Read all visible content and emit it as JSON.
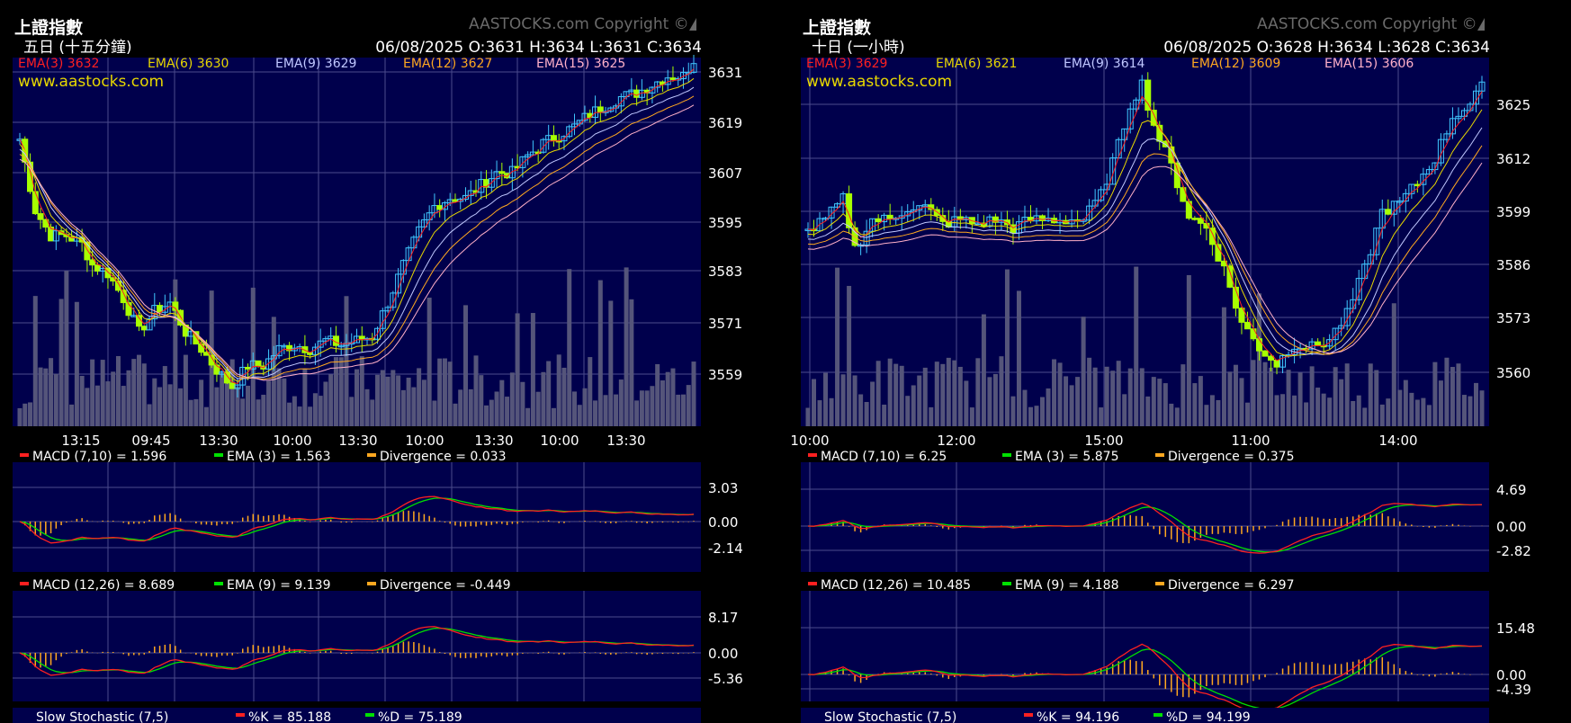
{
  "copyright": "AASTOCKS.com Copyright ©",
  "website": "www.aastocks.com",
  "colors": {
    "background": "#000000",
    "plot_bg": "#00004c",
    "grid": "#4b4b8c",
    "up_candle": "#40c8ff",
    "down_candle": "#a8ff00",
    "volume": "#55557a",
    "macd_line": "#ff2020",
    "signal_line": "#00e000",
    "divergence": "#ffa820",
    "ema3": "#ff2020",
    "ema6": "#e8d800",
    "ema9": "#c0c8ff",
    "ema12": "#ffa820",
    "ema15": "#ffb0c8"
  },
  "panels": [
    {
      "title": "上證指數",
      "period": "五日 (十五分鐘)",
      "ohlc": "06/08/2025   O:3631  H:3634  L:3631  C:3634",
      "ema_legend": [
        {
          "text": "EMA(3) 3632",
          "color": "#ff2020"
        },
        {
          "text": "EMA(6) 3630",
          "color": "#e8d800"
        },
        {
          "text": "EMA(9) 3629",
          "color": "#c0c8ff"
        },
        {
          "text": "EMA(12) 3627",
          "color": "#ffa820"
        },
        {
          "text": "EMA(15) 3625",
          "color": "#ffb0c8"
        }
      ],
      "macd1_legend": [
        "MACD (7,10) = 1.596",
        "EMA (3) = 1.563",
        "Divergence = 0.033"
      ],
      "macd2_legend": [
        "MACD (12,26) = 8.689",
        "EMA (9) = 9.139",
        "Divergence = -0.449"
      ],
      "stoch_legend": [
        "Slow Stochastic (7,5)",
        "%K = 85.188",
        "%D = 75.189"
      ]
    },
    {
      "title": "上證指數",
      "period": "十日 (一小時)",
      "ohlc": "06/08/2025   O:3628  H:3634  L:3628  C:3634",
      "ema_legend": [
        {
          "text": "EMA(3) 3629",
          "color": "#ff2020"
        },
        {
          "text": "EMA(6) 3621",
          "color": "#e8d800"
        },
        {
          "text": "EMA(9) 3614",
          "color": "#c0c8ff"
        },
        {
          "text": "EMA(12) 3609",
          "color": "#ffa820"
        },
        {
          "text": "EMA(15) 3606",
          "color": "#ffb0c8"
        }
      ],
      "macd1_legend": [
        "MACD (7,10) = 6.25",
        "EMA (3) = 5.875",
        "Divergence = 0.375"
      ],
      "macd2_legend": [
        "MACD (12,26) = 10.485",
        "EMA (9) = 4.188",
        "Divergence = 6.297"
      ],
      "stoch_legend": [
        "Slow Stochastic (7,5)",
        "%K = 94.196",
        "%D = 94.199"
      ]
    }
  ],
  "chart_data": [
    {
      "type": "candlestick",
      "title": "上證指數",
      "subtitle": "五日 (十五分鐘)",
      "x_tick_labels": [
        "13:15",
        "09:45",
        "13:30",
        "10:00",
        "13:30",
        "10:00",
        "13:30",
        "10:00",
        "13:30"
      ],
      "y_ticks": [
        3631,
        3619,
        3607,
        3595,
        3583,
        3571,
        3559
      ],
      "close_path": [
        [
          0,
          3615
        ],
        [
          3,
          3598
        ],
        [
          6,
          3592
        ],
        [
          9,
          3592
        ],
        [
          12,
          3590
        ],
        [
          14,
          3585
        ],
        [
          17,
          3583
        ],
        [
          20,
          3577
        ],
        [
          23,
          3569
        ],
        [
          26,
          3574
        ],
        [
          29,
          3576
        ],
        [
          32,
          3569
        ],
        [
          35,
          3565
        ],
        [
          38,
          3560
        ],
        [
          41,
          3556
        ],
        [
          44,
          3561
        ],
        [
          47,
          3561
        ],
        [
          50,
          3565
        ],
        [
          53,
          3566
        ],
        [
          56,
          3565
        ],
        [
          59,
          3567
        ],
        [
          62,
          3566
        ],
        [
          65,
          3567
        ],
        [
          68,
          3568
        ],
        [
          71,
          3576
        ],
        [
          74,
          3585
        ],
        [
          77,
          3593
        ],
        [
          80,
          3599
        ],
        [
          83,
          3601
        ],
        [
          86,
          3601
        ],
        [
          89,
          3604
        ],
        [
          92,
          3607
        ],
        [
          95,
          3607
        ],
        [
          98,
          3611
        ],
        [
          101,
          3614
        ],
        [
          104,
          3616
        ],
        [
          107,
          3618
        ],
        [
          110,
          3621
        ],
        [
          113,
          3623
        ],
        [
          116,
          3625
        ],
        [
          119,
          3626
        ],
        [
          122,
          3628
        ],
        [
          125,
          3630
        ],
        [
          128,
          3630
        ],
        [
          130,
          3634
        ]
      ],
      "macd1": {
        "legend": [
          "MACD (7,10) = 1.596",
          "EMA (3) = 1.563",
          "Divergence = 0.033"
        ],
        "y_ticks": [
          3.03,
          0.0,
          -2.14
        ]
      },
      "macd2": {
        "legend": [
          "MACD (12,26) = 8.689",
          "EMA (9) = 9.139",
          "Divergence = -0.449"
        ],
        "y_ticks": [
          8.17,
          0.0,
          -5.36
        ]
      }
    },
    {
      "type": "candlestick",
      "title": "上證指數",
      "subtitle": "十日 (一小時)",
      "x_tick_labels": [
        "10:00",
        "12:00",
        "15:00",
        "11:00",
        "14:00"
      ],
      "y_ticks": [
        3625,
        3612,
        3599,
        3586,
        3573,
        3560
      ],
      "close_path": [
        [
          0,
          3594
        ],
        [
          3,
          3597
        ],
        [
          6,
          3602
        ],
        [
          8,
          3590
        ],
        [
          11,
          3597
        ],
        [
          14,
          3597
        ],
        [
          17,
          3600
        ],
        [
          20,
          3600
        ],
        [
          23,
          3596
        ],
        [
          26,
          3597
        ],
        [
          29,
          3596
        ],
        [
          32,
          3597
        ],
        [
          35,
          3595
        ],
        [
          38,
          3597
        ],
        [
          41,
          3597
        ],
        [
          44,
          3597
        ],
        [
          47,
          3597
        ],
        [
          50,
          3603
        ],
        [
          53,
          3615
        ],
        [
          55,
          3625
        ],
        [
          57,
          3630
        ],
        [
          59,
          3620
        ],
        [
          62,
          3610
        ],
        [
          65,
          3598
        ],
        [
          68,
          3595
        ],
        [
          71,
          3585
        ],
        [
          74,
          3572
        ],
        [
          77,
          3566
        ],
        [
          80,
          3562
        ],
        [
          83,
          3567
        ],
        [
          86,
          3566
        ],
        [
          89,
          3568
        ],
        [
          92,
          3574
        ],
        [
          95,
          3585
        ],
        [
          98,
          3599
        ],
        [
          101,
          3601
        ],
        [
          104,
          3606
        ],
        [
          107,
          3612
        ],
        [
          110,
          3622
        ],
        [
          113,
          3625
        ],
        [
          115,
          3629
        ]
      ],
      "macd1": {
        "legend": [
          "MACD (7,10) = 6.25",
          "EMA (3) = 5.875",
          "Divergence = 0.375"
        ],
        "y_ticks": [
          4.69,
          0.0,
          -2.82
        ]
      },
      "macd2": {
        "legend": [
          "MACD (12,26) = 10.485",
          "EMA (9) = 4.188",
          "Divergence = 6.297"
        ],
        "y_ticks": [
          15.48,
          0.0,
          -4.39
        ]
      }
    }
  ]
}
